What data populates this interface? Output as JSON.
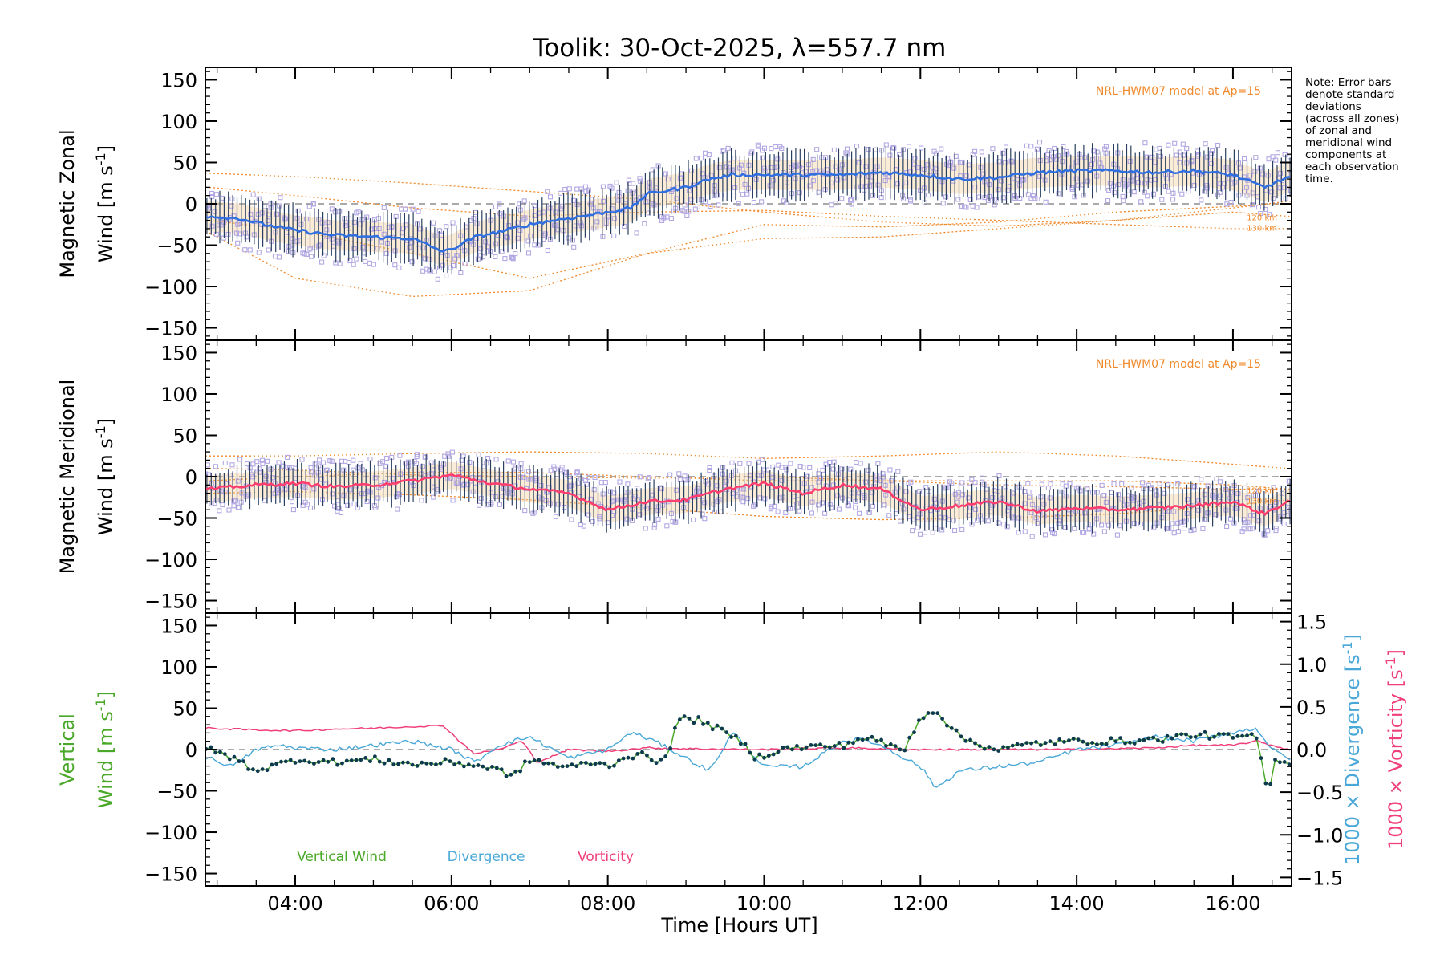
{
  "chart_data": {
    "title": "Toolik: 30-Oct-2025, λ=557.7 nm",
    "xlabel": "Time [Hours UT]",
    "xlim": [
      2.85,
      16.75
    ],
    "x_ticks": [
      4,
      6,
      8,
      10,
      12,
      14,
      16
    ],
    "x_tick_labels": [
      "04:00",
      "06:00",
      "08:00",
      "10:00",
      "12:00",
      "14:00",
      "16:00"
    ],
    "note_lines": [
      "Note: Error bars",
      "denote standard",
      "deviations",
      "(across all zones)",
      "of zonal and",
      "meridional wind",
      "components at",
      "each observation",
      "time."
    ],
    "colors": {
      "zonal": "#2f6fe0",
      "meridional": "#ff3d6e",
      "model": "#f08a2c",
      "scatter": "#b3a8e3",
      "errbar": "#2a3f5f",
      "vertical": "#4aa828",
      "divergence": "#4aa8d8",
      "vorticity": "#f0407a",
      "points": "#0e3a4e"
    },
    "panels": [
      {
        "type": "line",
        "ylabel_line1": "Magnetic Zonal",
        "ylabel_line2": "Wind [m s",
        "ylabel_sup": "-1",
        "ylabel_end": "]",
        "ylim": [
          -165,
          165
        ],
        "y_ticks": [
          -150,
          -100,
          -50,
          0,
          50,
          100,
          150
        ],
        "model_label": "NRL-HWM07 model at Ap=15",
        "model_altitudes": [
          "120 km",
          "130 km"
        ],
        "mean_keys": {
          "x": [
            2.9,
            3.3,
            3.6,
            4.0,
            4.5,
            5.0,
            5.5,
            5.9,
            6.0,
            6.3,
            6.7,
            7.0,
            7.3,
            7.6,
            8.0,
            8.3,
            8.5,
            9.0,
            9.3,
            9.6,
            10.0,
            10.5,
            11.0,
            11.5,
            12.0,
            12.5,
            13.0,
            13.5,
            14.0,
            14.5,
            15.0,
            15.5,
            16.0,
            16.4,
            16.7
          ],
          "y": [
            -15,
            -18,
            -25,
            -32,
            -38,
            -40,
            -42,
            -58,
            -55,
            -40,
            -32,
            -25,
            -20,
            -16,
            -10,
            -5,
            12,
            20,
            30,
            35,
            35,
            35,
            35,
            38,
            35,
            30,
            32,
            38,
            40,
            40,
            38,
            40,
            35,
            20,
            32
          ]
        },
        "spread": 28,
        "model_curves": [
          {
            "x": [
              2.9,
              4.0,
              5.5,
              7.0,
              8.5,
              10.0,
              11.5,
              13.0,
              14.5,
              16.0,
              16.7
            ],
            "y": [
              37,
              33,
              25,
              15,
              5,
              -10,
              -22,
              -27,
              -20,
              -5,
              3
            ]
          },
          {
            "x": [
              2.9,
              4.0,
              5.5,
              7.0,
              8.5,
              10.0,
              11.5,
              13.0,
              14.5,
              16.0,
              16.7
            ],
            "y": [
              -20,
              -32,
              -60,
              -90,
              -60,
              -25,
              -28,
              -22,
              -10,
              -3,
              0
            ]
          },
          {
            "x": [
              2.9,
              4.0,
              5.5,
              7.0,
              8.5,
              10.0,
              11.5,
              13.0,
              14.5,
              16.0,
              16.7
            ],
            "y": [
              -35,
              -90,
              -112,
              -105,
              -60,
              -42,
              -40,
              -30,
              -20,
              -10,
              -15
            ]
          },
          {
            "x": [
              2.9,
              4.0,
              5.5,
              7.0,
              8.5,
              10.0,
              11.5,
              13.0,
              14.5,
              16.0,
              16.7
            ],
            "y": [
              20,
              10,
              -5,
              -15,
              -10,
              -8,
              -15,
              -20,
              -25,
              -30,
              -30
            ]
          }
        ]
      },
      {
        "type": "line",
        "ylabel_line1": "Magnetic Meridional",
        "ylabel_line2": "Wind [m s",
        "ylabel_sup": "-1",
        "ylabel_end": "]",
        "ylim": [
          -165,
          165
        ],
        "y_ticks": [
          -150,
          -100,
          -50,
          0,
          50,
          100,
          150
        ],
        "model_label": "NRL-HWM07 model at Ap=15",
        "model_altitudes": [
          "120 km",
          "130 km"
        ],
        "mean_keys": {
          "x": [
            2.9,
            3.5,
            4.0,
            4.5,
            5.0,
            5.5,
            6.0,
            6.5,
            7.0,
            7.5,
            8.0,
            8.5,
            9.0,
            9.5,
            10.0,
            10.5,
            11.0,
            11.5,
            12.0,
            12.5,
            13.0,
            13.5,
            14.0,
            14.5,
            15.0,
            15.5,
            16.0,
            16.4,
            16.7
          ],
          "y": [
            -15,
            -10,
            -8,
            -12,
            -10,
            -5,
            2,
            -8,
            -15,
            -20,
            -40,
            -30,
            -28,
            -15,
            -8,
            -20,
            -10,
            -15,
            -40,
            -35,
            -30,
            -42,
            -38,
            -40,
            -38,
            -35,
            -30,
            -45,
            -30
          ]
        },
        "spread": 25,
        "model_curves": [
          {
            "x": [
              2.9,
              4.0,
              5.5,
              7.0,
              8.5,
              10.0,
              11.5,
              13.0,
              14.5,
              16.0,
              16.7
            ],
            "y": [
              25,
              25,
              28,
              30,
              28,
              22,
              25,
              30,
              25,
              15,
              10
            ]
          },
          {
            "x": [
              2.9,
              4.0,
              5.5,
              7.0,
              8.5,
              10.0,
              11.5,
              13.0,
              14.5,
              16.0,
              16.7
            ],
            "y": [
              10,
              8,
              2,
              0,
              -2,
              0,
              -5,
              -10,
              -12,
              -15,
              -15
            ]
          },
          {
            "x": [
              2.9,
              4.0,
              5.5,
              7.0,
              8.5,
              10.0,
              11.5,
              13.0,
              14.5,
              16.0,
              16.7
            ],
            "y": [
              -20,
              -18,
              -22,
              -28,
              -38,
              -48,
              -52,
              -50,
              -45,
              -35,
              -28
            ]
          },
          {
            "x": [
              2.9,
              4.0,
              5.5,
              7.0,
              8.5,
              10.0,
              11.5,
              13.0,
              14.5,
              16.0,
              16.7
            ],
            "y": [
              -5,
              0,
              5,
              5,
              0,
              -5,
              -5,
              -5,
              -5,
              -10,
              -15
            ]
          }
        ]
      },
      {
        "type": "line",
        "ylabel_line1": "Vertical",
        "ylabel_line2": "Wind [m s",
        "ylabel_sup": "-1",
        "ylabel_end": "]",
        "ylim": [
          -165,
          165
        ],
        "y_ticks": [
          -150,
          -100,
          -50,
          0,
          50,
          100,
          150
        ],
        "right_axis": {
          "ylim": [
            -1.6,
            1.6
          ],
          "ticks": [
            -1.5,
            -1.0,
            -0.5,
            0.0,
            0.5,
            1.0,
            1.5
          ],
          "tick_labels": [
            "−1.5",
            "−1.0",
            "−0.5",
            "0.0",
            "0.5",
            "1.0",
            "1.5"
          ],
          "div_label": "1000 × Divergence [s",
          "vort_label": "1000 × Vorticity [s",
          "sup": "-1",
          "end": "]"
        },
        "legend": [
          "Vertical Wind",
          "Divergence",
          "Vorticity"
        ],
        "vertical_keys": {
          "x": [
            2.9,
            3.2,
            3.5,
            3.8,
            4.0,
            4.5,
            5.0,
            5.5,
            6.0,
            6.5,
            6.8,
            7.0,
            7.3,
            7.5,
            7.8,
            8.0,
            8.2,
            8.4,
            8.6,
            8.8,
            8.9,
            9.2,
            9.4,
            9.7,
            9.9,
            10.2,
            10.5,
            11.0,
            11.3,
            11.6,
            11.8,
            12.0,
            12.2,
            12.5,
            12.8,
            13.0,
            13.5,
            14.0,
            14.5,
            15.0,
            15.5,
            16.0,
            16.3,
            16.45,
            16.55,
            16.7
          ],
          "y": [
            0,
            -10,
            -25,
            -18,
            -12,
            -15,
            -12,
            -18,
            -15,
            -22,
            -32,
            -12,
            -18,
            -22,
            -15,
            -20,
            -10,
            -5,
            -15,
            0,
            38,
            35,
            25,
            10,
            -10,
            0,
            3,
            5,
            15,
            5,
            0,
            40,
            48,
            15,
            5,
            0,
            8,
            10,
            10,
            12,
            18,
            15,
            15,
            -55,
            -10,
            -15
          ]
        },
        "divergence_keys": {
          "x": [
            2.9,
            3.2,
            3.5,
            3.8,
            4.0,
            4.5,
            5.0,
            5.5,
            6.0,
            6.3,
            6.6,
            7.0,
            7.5,
            8.0,
            8.3,
            8.6,
            9.0,
            9.3,
            9.6,
            10.0,
            10.5,
            11.0,
            11.3,
            11.6,
            12.0,
            12.2,
            12.5,
            13.0,
            13.5,
            14.0,
            14.5,
            15.0,
            15.5,
            16.0,
            16.3,
            16.5,
            16.7
          ],
          "y": [
            -0.1,
            -0.2,
            0.0,
            0.05,
            0.02,
            0.0,
            0.05,
            0.1,
            0.0,
            -0.15,
            0.05,
            0.15,
            -0.1,
            0.0,
            0.2,
            0.1,
            -0.1,
            -0.25,
            0.2,
            -0.2,
            -0.2,
            0.1,
            0.12,
            0.0,
            -0.2,
            -0.45,
            -0.25,
            -0.2,
            -0.15,
            0.0,
            0.05,
            0.15,
            0.1,
            0.2,
            0.25,
            0.0,
            -0.1
          ]
        },
        "vorticity_keys": {
          "x": [
            2.9,
            3.5,
            4.0,
            4.5,
            5.0,
            5.5,
            5.9,
            6.1,
            6.3,
            6.6,
            6.9,
            7.1,
            7.5,
            8.0,
            8.5,
            9.0,
            10.0,
            11.0,
            12.0,
            13.0,
            14.0,
            15.0,
            15.5,
            16.0,
            16.3,
            16.7
          ],
          "y": [
            0.25,
            0.23,
            0.22,
            0.24,
            0.25,
            0.27,
            0.28,
            0.1,
            -0.05,
            0.0,
            0.1,
            -0.15,
            0.0,
            -0.02,
            0.02,
            0.01,
            0.0,
            0.02,
            0.0,
            0.0,
            0.0,
            0.02,
            0.05,
            0.05,
            0.1,
            0.0
          ]
        }
      }
    ]
  }
}
